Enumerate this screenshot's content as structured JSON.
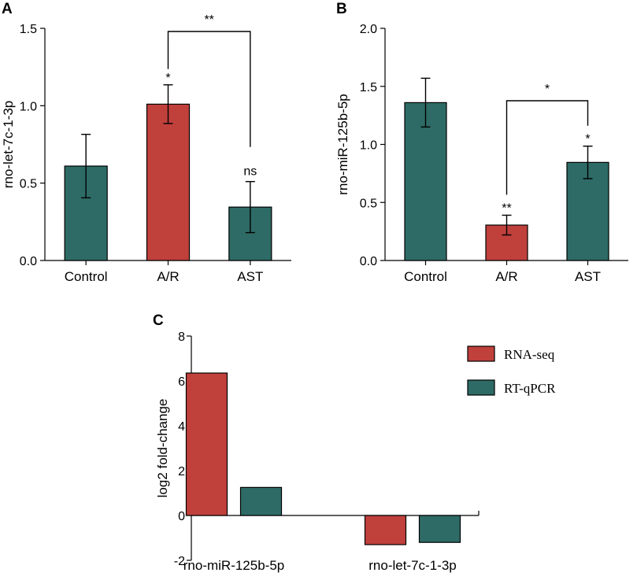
{
  "colors": {
    "red": "#c0403c",
    "teal": "#2e6b66"
  },
  "chart_data": [
    {
      "panel": "A",
      "type": "bar",
      "categories": [
        "Control",
        "A/R",
        "AST"
      ],
      "values": [
        0.61,
        1.01,
        0.345
      ],
      "errors": [
        0.205,
        0.125,
        0.165
      ],
      "bar_colors": [
        "teal",
        "red",
        "teal"
      ],
      "significance": [
        "",
        "*",
        "ns"
      ],
      "ylabel": "rno-let-7c-1-3p",
      "ylim": [
        0,
        1.5
      ],
      "yticks": [
        "0.0",
        "0.5",
        "1.0",
        "1.5"
      ],
      "comparison": {
        "from": 1,
        "to": 2,
        "label": "**"
      }
    },
    {
      "panel": "B",
      "type": "bar",
      "categories": [
        "Control",
        "A/R",
        "AST"
      ],
      "values": [
        1.36,
        0.305,
        0.845
      ],
      "errors": [
        0.21,
        0.085,
        0.14
      ],
      "bar_colors": [
        "teal",
        "red",
        "teal"
      ],
      "significance": [
        "",
        "**",
        "*"
      ],
      "ylabel": "rno-miR-125b-5p",
      "ylim": [
        0,
        2.0
      ],
      "yticks": [
        "0.0",
        "0.5",
        "1.0",
        "1.5",
        "2.0"
      ],
      "comparison": {
        "from": 1,
        "to": 2,
        "label": "*"
      }
    },
    {
      "panel": "C",
      "type": "bar",
      "categories": [
        "rno-miR-125b-5p",
        "rno-let-7c-1-3p"
      ],
      "series": [
        {
          "name": "RNA-seq",
          "color": "red",
          "values": [
            6.35,
            -1.3
          ]
        },
        {
          "name": "RT-qPCR",
          "color": "teal",
          "values": [
            1.25,
            -1.2
          ]
        }
      ],
      "ylabel": "log2 fold-change",
      "ylim": [
        -2,
        8
      ],
      "yticks": [
        "-2",
        "0",
        "2",
        "4",
        "6",
        "8"
      ],
      "legend": "top-right"
    }
  ]
}
